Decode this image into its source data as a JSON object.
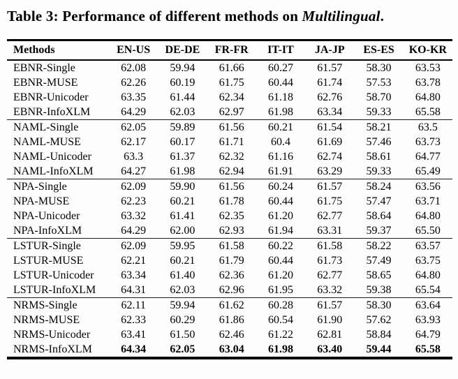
{
  "caption": {
    "prefix": "Table 3: Performance of different methods on ",
    "dataset": "Multilingual",
    "suffix": "."
  },
  "colors": {
    "text": "#000000",
    "background": "#fdfdfd",
    "rule": "#000000"
  },
  "table": {
    "columns": [
      "Methods",
      "EN-US",
      "DE-DE",
      "FR-FR",
      "IT-IT",
      "JA-JP",
      "ES-ES",
      "KO-KR"
    ],
    "groups": [
      {
        "name": "EBNR",
        "rows": [
          {
            "method": "EBNR-Single",
            "values": [
              "62.08",
              "59.94",
              "61.66",
              "60.27",
              "61.57",
              "58.30",
              "63.53"
            ],
            "bold_values": false
          },
          {
            "method": "EBNR-MUSE",
            "values": [
              "62.26",
              "60.19",
              "61.75",
              "60.44",
              "61.74",
              "57.53",
              "63.78"
            ],
            "bold_values": false
          },
          {
            "method": "EBNR-Unicoder",
            "values": [
              "63.35",
              "61.44",
              "62.34",
              "61.18",
              "62.76",
              "58.70",
              "64.80"
            ],
            "bold_values": false
          },
          {
            "method": "EBNR-InfoXLM",
            "values": [
              "64.29",
              "62.03",
              "62.97",
              "61.98",
              "63.34",
              "59.33",
              "65.58"
            ],
            "bold_values": false
          }
        ]
      },
      {
        "name": "NAML",
        "rows": [
          {
            "method": "NAML-Single",
            "values": [
              "62.05",
              "59.89",
              "61.56",
              "60.21",
              "61.54",
              "58.21",
              "63.5"
            ],
            "bold_values": false
          },
          {
            "method": "NAML-MUSE",
            "values": [
              "62.17",
              "60.17",
              "61.71",
              "60.4",
              "61.69",
              "57.46",
              "63.73"
            ],
            "bold_values": false
          },
          {
            "method": "NAML-Unicoder",
            "values": [
              "63.3",
              "61.37",
              "62.32",
              "61.16",
              "62.74",
              "58.61",
              "64.77"
            ],
            "bold_values": false
          },
          {
            "method": "NAML-InfoXLM",
            "values": [
              "64.27",
              "61.98",
              "62.94",
              "61.91",
              "63.29",
              "59.33",
              "65.49"
            ],
            "bold_values": false
          }
        ]
      },
      {
        "name": "NPA",
        "rows": [
          {
            "method": "NPA-Single",
            "values": [
              "62.09",
              "59.90",
              "61.56",
              "60.24",
              "61.57",
              "58.24",
              "63.56"
            ],
            "bold_values": false
          },
          {
            "method": "NPA-MUSE",
            "values": [
              "62.23",
              "60.21",
              "61.78",
              "60.44",
              "61.75",
              "57.47",
              "63.71"
            ],
            "bold_values": false
          },
          {
            "method": "NPA-Unicoder",
            "values": [
              "63.32",
              "61.41",
              "62.35",
              "61.20",
              "62.77",
              "58.64",
              "64.80"
            ],
            "bold_values": false
          },
          {
            "method": "NPA-InfoXLM",
            "values": [
              "64.29",
              "62.00",
              "62.93",
              "61.94",
              "63.31",
              "59.37",
              "65.50"
            ],
            "bold_values": false
          }
        ]
      },
      {
        "name": "LSTUR",
        "rows": [
          {
            "method": "LSTUR-Single",
            "values": [
              "62.09",
              "59.95",
              "61.58",
              "60.22",
              "61.58",
              "58.22",
              "63.57"
            ],
            "bold_values": false
          },
          {
            "method": "LSTUR-MUSE",
            "values": [
              "62.21",
              "60.21",
              "61.79",
              "60.44",
              "61.73",
              "57.49",
              "63.75"
            ],
            "bold_values": false
          },
          {
            "method": "LSTUR-Unicoder",
            "values": [
              "63.34",
              "61.40",
              "62.36",
              "61.20",
              "62.77",
              "58.65",
              "64.80"
            ],
            "bold_values": false
          },
          {
            "method": "LSTUR-InfoXLM",
            "values": [
              "64.31",
              "62.03",
              "62.96",
              "61.95",
              "63.32",
              "59.38",
              "65.54"
            ],
            "bold_values": false
          }
        ]
      },
      {
        "name": "NRMS",
        "rows": [
          {
            "method": "NRMS-Single",
            "values": [
              "62.11",
              "59.94",
              "61.62",
              "60.28",
              "61.57",
              "58.30",
              "63.64"
            ],
            "bold_values": false
          },
          {
            "method": "NRMS-MUSE",
            "values": [
              "62.33",
              "60.29",
              "61.86",
              "60.54",
              "61.90",
              "57.62",
              "63.93"
            ],
            "bold_values": false
          },
          {
            "method": "NRMS-Unicoder",
            "values": [
              "63.41",
              "61.50",
              "62.46",
              "61.22",
              "62.81",
              "58.84",
              "64.79"
            ],
            "bold_values": false
          },
          {
            "method": "NRMS-InfoXLM",
            "values": [
              "64.34",
              "62.05",
              "63.04",
              "61.98",
              "63.40",
              "59.44",
              "65.58"
            ],
            "bold_values": true
          }
        ]
      }
    ]
  }
}
